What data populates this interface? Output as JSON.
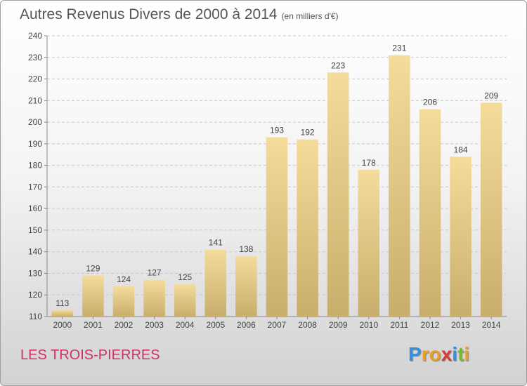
{
  "header": {
    "title": "Autres Revenus Divers de 2000 à 2014",
    "unit": "(en milliers d'€)"
  },
  "footer": {
    "commune": "LES TROIS-PIERRES",
    "logo_letters": [
      "P",
      "r",
      "o",
      "x",
      "i",
      "t",
      "i"
    ]
  },
  "colors": {
    "bar_light": "#f5dc9a",
    "bar_dark": "#c9ad6c",
    "commune_text": "#cc3366",
    "logo": [
      "#3a8fd6",
      "#e8a020",
      "#e8a020",
      "#d63a3a",
      "#3a8fd6",
      "#7ab83a",
      "#e8a020"
    ]
  },
  "chart_data": {
    "type": "bar",
    "categories": [
      "2000",
      "2001",
      "2002",
      "2003",
      "2004",
      "2005",
      "2006",
      "2007",
      "2008",
      "2009",
      "2010",
      "2011",
      "2012",
      "2013",
      "2014"
    ],
    "values": [
      113,
      129,
      124,
      127,
      125,
      141,
      138,
      193,
      192,
      223,
      178,
      231,
      206,
      184,
      209
    ],
    "ylim": [
      110,
      240
    ],
    "yticks": [
      110,
      120,
      130,
      140,
      150,
      160,
      170,
      180,
      190,
      200,
      210,
      220,
      230,
      240
    ],
    "grid": true
  }
}
